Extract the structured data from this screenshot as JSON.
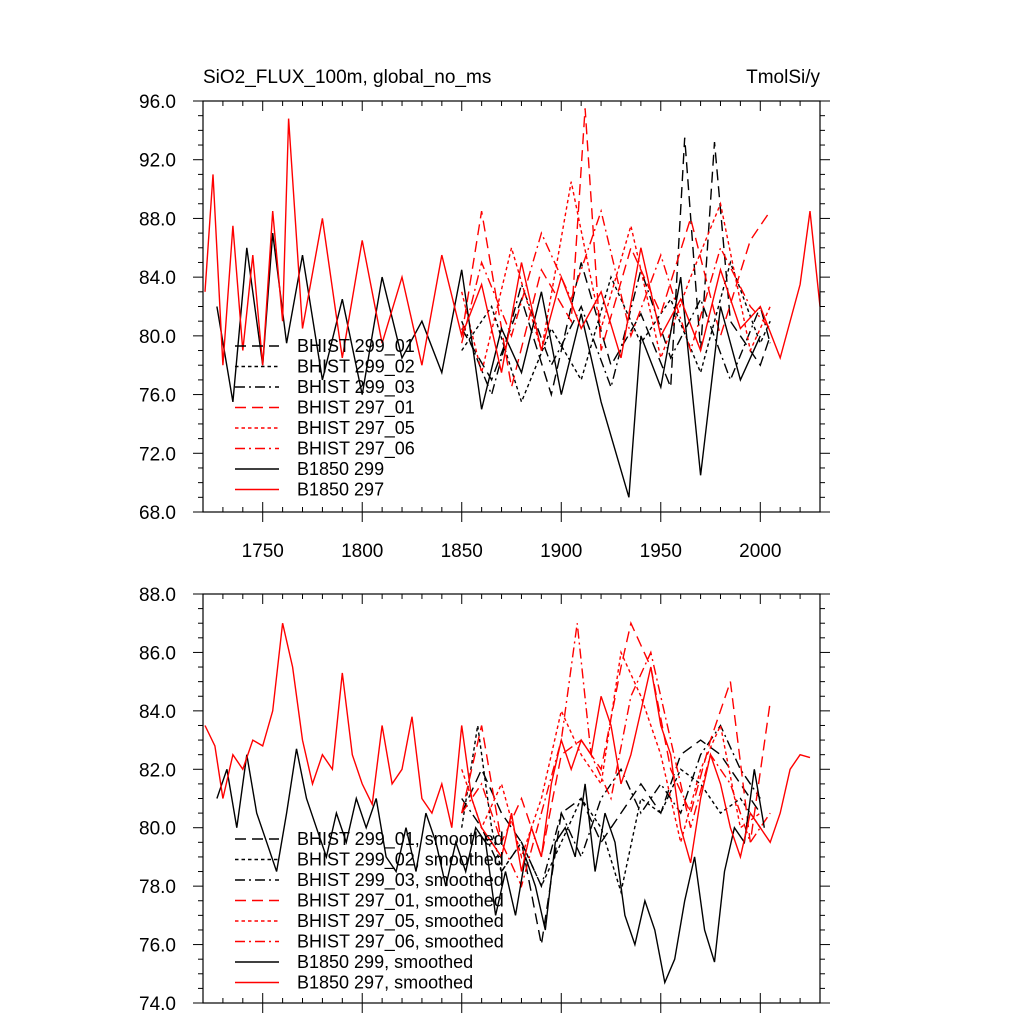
{
  "chart_data": [
    {
      "type": "line",
      "title_left": "SiO2_FLUX_100m, global_no_ms",
      "title_right": "TmolSi/y",
      "xlabel": "",
      "ylabel": "",
      "xlim": [
        1720,
        2030
      ],
      "ylim": [
        68,
        96
      ],
      "x_ticks": [
        1750,
        1800,
        1850,
        1900,
        1950,
        2000
      ],
      "x_tick_labels": [
        "1750",
        "1800",
        "1850",
        "1900",
        "1950",
        "2000"
      ],
      "y_ticks": [
        68,
        72,
        76,
        80,
        84,
        88,
        92,
        96
      ],
      "y_tick_labels": [
        "68.0",
        "72.0",
        "76.0",
        "80.0",
        "84.0",
        "88.0",
        "92.0",
        "96.0"
      ],
      "grid": false,
      "legend_position": "lower-left",
      "series": [
        {
          "name": "BHIST 299_01",
          "color": "#000000",
          "dash": "long-dash",
          "x": [
            1850,
            1865,
            1880,
            1895,
            1910,
            1925,
            1940,
            1955,
            1962,
            1970,
            1977,
            1985,
            2000,
            2005
          ],
          "values": [
            80.5,
            77.0,
            82.5,
            76.0,
            85.0,
            78.0,
            81.5,
            76.5,
            93.5,
            79.0,
            93.2,
            81.0,
            78.0,
            80.0
          ]
        },
        {
          "name": "BHIST 299_02",
          "color": "#000000",
          "dash": "short-dash",
          "x": [
            1850,
            1865,
            1880,
            1895,
            1910,
            1925,
            1940,
            1955,
            1970,
            1985,
            2000,
            2005
          ],
          "values": [
            79.0,
            82.0,
            75.5,
            80.5,
            77.0,
            84.0,
            79.5,
            82.5,
            77.5,
            85.0,
            79.5,
            81.0
          ]
        },
        {
          "name": "BHIST 299_03",
          "color": "#000000",
          "dash": "dash-dot",
          "x": [
            1850,
            1865,
            1880,
            1895,
            1910,
            1925,
            1940,
            1955,
            1970,
            1985,
            2000,
            2005
          ],
          "values": [
            81.0,
            76.0,
            83.5,
            78.0,
            82.0,
            76.5,
            84.5,
            78.5,
            82.5,
            77.0,
            82.0,
            79.5
          ]
        },
        {
          "name": "BHIST 297_01",
          "color": "#ff0000",
          "dash": "long-dash",
          "x": [
            1850,
            1860,
            1875,
            1890,
            1905,
            1912,
            1920,
            1935,
            1950,
            1965,
            1980,
            1995,
            2005
          ],
          "values": [
            80.0,
            88.5,
            76.5,
            84.5,
            81.0,
            95.5,
            79.0,
            86.0,
            81.5,
            88.0,
            80.0,
            86.5,
            88.5
          ]
        },
        {
          "name": "BHIST 297_05",
          "color": "#ff0000",
          "dash": "short-dash",
          "x": [
            1850,
            1860,
            1875,
            1890,
            1905,
            1920,
            1935,
            1950,
            1965,
            1980,
            1995,
            2005
          ],
          "values": [
            83.0,
            77.5,
            86.0,
            79.0,
            90.5,
            80.5,
            87.5,
            78.5,
            84.0,
            89.0,
            79.0,
            82.0
          ]
        },
        {
          "name": "BHIST 297_06",
          "color": "#ff0000",
          "dash": "dash-dot",
          "x": [
            1850,
            1860,
            1875,
            1890,
            1905,
            1920,
            1935,
            1950,
            1965,
            1980,
            1995,
            2005
          ],
          "values": [
            79.5,
            85.0,
            80.0,
            87.0,
            82.5,
            88.5,
            80.0,
            85.5,
            79.0,
            86.0,
            82.0,
            80.5
          ]
        },
        {
          "name": "B1850 299",
          "color": "#000000",
          "dash": "solid",
          "x": [
            1727,
            1735,
            1742,
            1750,
            1755,
            1762,
            1770,
            1780,
            1790,
            1800,
            1810,
            1820,
            1830,
            1840,
            1850,
            1860,
            1870,
            1880,
            1890,
            1900,
            1910,
            1920,
            1934,
            1940,
            1950,
            1960,
            1970,
            1980,
            1990,
            2000
          ],
          "values": [
            82.0,
            75.5,
            86.0,
            78.0,
            87.0,
            79.5,
            85.5,
            77.0,
            82.5,
            76.0,
            84.0,
            78.5,
            81.0,
            77.5,
            84.5,
            75.0,
            80.5,
            77.5,
            83.0,
            76.0,
            81.5,
            75.5,
            69.0,
            80.0,
            76.5,
            84.0,
            70.5,
            82.0,
            77.0,
            80.0
          ]
        },
        {
          "name": "B1850 297",
          "color": "#ff0000",
          "dash": "solid",
          "x": [
            1721,
            1725,
            1730,
            1735,
            1740,
            1745,
            1750,
            1755,
            1760,
            1763,
            1770,
            1780,
            1790,
            1800,
            1810,
            1820,
            1830,
            1840,
            1850,
            1860,
            1870,
            1880,
            1890,
            1900,
            1910,
            1920,
            1930,
            1940,
            1950,
            1960,
            1970,
            1980,
            1990,
            2000,
            2010,
            2020,
            2025,
            2030
          ],
          "values": [
            83.0,
            91.0,
            78.0,
            87.5,
            79.0,
            85.5,
            78.0,
            88.5,
            81.0,
            94.8,
            80.5,
            88.0,
            78.5,
            86.5,
            79.5,
            84.0,
            78.0,
            85.5,
            80.0,
            83.5,
            77.5,
            85.0,
            79.0,
            84.0,
            80.5,
            83.0,
            78.5,
            86.0,
            80.0,
            82.5,
            79.0,
            84.5,
            80.5,
            82.0,
            78.5,
            83.5,
            88.5,
            82.0
          ]
        }
      ]
    },
    {
      "type": "line",
      "title_left": "",
      "title_right": "",
      "xlabel": "",
      "ylabel": "",
      "xlim": [
        1720,
        2030
      ],
      "ylim": [
        74,
        88
      ],
      "x_ticks": [
        1750,
        1800,
        1850,
        1900,
        1950,
        2000
      ],
      "x_tick_labels": [],
      "y_ticks": [
        74,
        76,
        78,
        80,
        82,
        84,
        86,
        88
      ],
      "y_tick_labels": [
        "74.0",
        "76.0",
        "78.0",
        "80.0",
        "82.0",
        "84.0",
        "86.0",
        "88.0"
      ],
      "grid": false,
      "legend_position": "lower-left",
      "series": [
        {
          "name": "BHIST 299_01, smoothed",
          "color": "#000000",
          "dash": "long-dash",
          "x": [
            1850,
            1860,
            1870,
            1880,
            1890,
            1900,
            1910,
            1920,
            1930,
            1940,
            1950,
            1960,
            1970,
            1980,
            1990,
            2000
          ],
          "values": [
            80.5,
            82.0,
            80.5,
            79.5,
            76.0,
            80.5,
            81.0,
            79.5,
            80.5,
            81.5,
            80.5,
            82.5,
            83.0,
            82.5,
            81.5,
            80.5
          ]
        },
        {
          "name": "BHIST 299_02, smoothed",
          "color": "#000000",
          "dash": "short-dash",
          "x": [
            1850,
            1858,
            1865,
            1870,
            1880,
            1890,
            1900,
            1910,
            1920,
            1930,
            1940,
            1950,
            1960,
            1970,
            1980,
            1990,
            2000
          ],
          "values": [
            80.0,
            83.5,
            80.0,
            78.5,
            79.5,
            78.0,
            79.5,
            81.0,
            80.0,
            77.8,
            81.0,
            80.5,
            82.0,
            81.5,
            80.5,
            81.0,
            80.0
          ]
        },
        {
          "name": "BHIST 299_03, smoothed",
          "color": "#000000",
          "dash": "dash-dot",
          "x": [
            1850,
            1860,
            1870,
            1880,
            1890,
            1900,
            1910,
            1920,
            1930,
            1940,
            1950,
            1960,
            1970,
            1980,
            1990,
            2000
          ],
          "values": [
            81.0,
            80.0,
            78.5,
            79.5,
            78.0,
            80.5,
            79.0,
            81.0,
            82.0,
            80.5,
            81.5,
            80.5,
            82.5,
            83.5,
            82.0,
            81.0
          ]
        },
        {
          "name": "BHIST 297_01, smoothed",
          "color": "#ff0000",
          "dash": "long-dash",
          "x": [
            1850,
            1860,
            1870,
            1880,
            1890,
            1900,
            1910,
            1920,
            1930,
            1935,
            1945,
            1955,
            1965,
            1975,
            1985,
            1995,
            2005
          ],
          "values": [
            80.5,
            83.5,
            79.5,
            81.0,
            79.0,
            82.5,
            83.0,
            82.0,
            85.5,
            87.0,
            85.5,
            82.0,
            80.5,
            83.0,
            85.0,
            79.5,
            84.3
          ]
        },
        {
          "name": "BHIST 297_05, smoothed",
          "color": "#ff0000",
          "dash": "short-dash",
          "x": [
            1850,
            1860,
            1870,
            1880,
            1890,
            1900,
            1910,
            1920,
            1930,
            1940,
            1950,
            1960,
            1970,
            1980,
            1990,
            2000
          ],
          "values": [
            82.0,
            80.0,
            81.5,
            79.0,
            81.0,
            84.0,
            82.5,
            81.5,
            86.0,
            84.5,
            82.5,
            79.5,
            82.0,
            83.5,
            80.0,
            80.5
          ]
        },
        {
          "name": "BHIST 297_06, smoothed",
          "color": "#ff0000",
          "dash": "dash-dot",
          "x": [
            1850,
            1860,
            1870,
            1880,
            1890,
            1900,
            1908,
            1915,
            1925,
            1935,
            1945,
            1955,
            1965,
            1975,
            1985,
            1995,
            2005
          ],
          "values": [
            80.5,
            81.5,
            79.5,
            78.0,
            80.5,
            83.0,
            87.0,
            82.5,
            81.0,
            84.5,
            86.0,
            83.0,
            80.0,
            82.5,
            81.5,
            79.5,
            80.5
          ]
        },
        {
          "name": "B1850 299, smoothed",
          "color": "#000000",
          "dash": "solid",
          "x": [
            1727,
            1732,
            1737,
            1742,
            1747,
            1752,
            1757,
            1762,
            1767,
            1772,
            1777,
            1782,
            1787,
            1792,
            1797,
            1802,
            1807,
            1812,
            1817,
            1822,
            1827,
            1832,
            1837,
            1842,
            1847,
            1852,
            1857,
            1862,
            1867,
            1872,
            1877,
            1882,
            1887,
            1892,
            1897,
            1902,
            1907,
            1912,
            1917,
            1922,
            1927,
            1932,
            1937,
            1942,
            1947,
            1952,
            1957,
            1962,
            1967,
            1972,
            1977,
            1982,
            1987,
            1992,
            1997,
            2002
          ],
          "values": [
            81.0,
            82.0,
            80.0,
            82.5,
            80.5,
            79.5,
            78.5,
            80.5,
            82.7,
            81.0,
            80.0,
            79.0,
            80.5,
            79.5,
            81.0,
            80.0,
            81.0,
            79.0,
            78.5,
            80.0,
            78.5,
            80.5,
            79.5,
            78.0,
            79.5,
            78.5,
            80.0,
            79.5,
            77.0,
            78.5,
            77.0,
            79.0,
            78.0,
            76.5,
            79.5,
            80.0,
            79.0,
            81.5,
            78.5,
            80.5,
            79.5,
            77.0,
            76.0,
            77.5,
            76.5,
            74.7,
            75.5,
            77.5,
            79.0,
            76.5,
            75.4,
            78.5,
            80.0,
            79.5,
            82.0,
            80.0
          ]
        },
        {
          "name": "B1850 297, smoothed",
          "color": "#ff0000",
          "dash": "solid",
          "x": [
            1721,
            1726,
            1730,
            1735,
            1740,
            1745,
            1750,
            1755,
            1760,
            1765,
            1770,
            1775,
            1780,
            1785,
            1790,
            1795,
            1800,
            1805,
            1810,
            1815,
            1820,
            1825,
            1830,
            1835,
            1840,
            1845,
            1850,
            1855,
            1860,
            1865,
            1870,
            1875,
            1880,
            1885,
            1890,
            1895,
            1900,
            1905,
            1910,
            1915,
            1920,
            1925,
            1930,
            1935,
            1940,
            1945,
            1950,
            1955,
            1960,
            1965,
            1970,
            1975,
            1980,
            1985,
            1990,
            1995,
            2000,
            2005,
            2010,
            2015,
            2020,
            2025
          ],
          "values": [
            83.5,
            82.8,
            81.0,
            82.5,
            82.0,
            83.0,
            82.8,
            84.0,
            87.0,
            85.5,
            83.0,
            81.5,
            82.5,
            82.0,
            85.3,
            82.5,
            81.5,
            80.8,
            83.5,
            81.5,
            82.0,
            83.8,
            81.0,
            80.5,
            81.5,
            80.0,
            83.5,
            81.0,
            80.0,
            79.5,
            79.0,
            80.5,
            78.5,
            80.0,
            79.0,
            81.5,
            83.0,
            82.0,
            83.0,
            82.5,
            84.5,
            83.5,
            81.5,
            82.5,
            84.0,
            85.5,
            83.5,
            82.5,
            80.0,
            78.8,
            81.0,
            82.5,
            81.5,
            80.0,
            79.0,
            80.5,
            80.0,
            79.5,
            80.5,
            82.0,
            82.5,
            82.4
          ]
        }
      ]
    }
  ]
}
